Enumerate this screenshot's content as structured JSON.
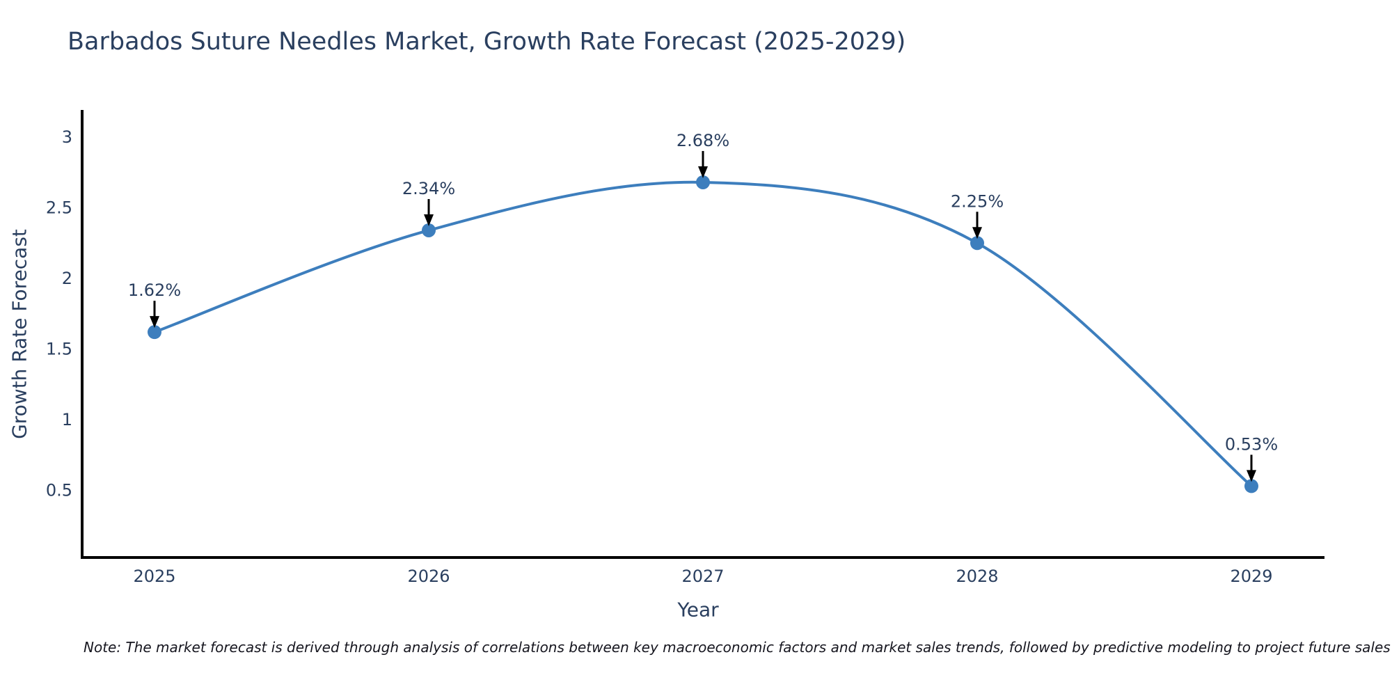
{
  "chart_data": {
    "type": "line",
    "title": "Barbados Suture Needles Market, Growth Rate Forecast (2025-2029)",
    "xlabel": "Year",
    "ylabel": "Growth Rate Forecast",
    "x": [
      2025,
      2026,
      2027,
      2028,
      2029
    ],
    "series": [
      {
        "name": "Growth Rate Forecast",
        "values": [
          1.62,
          2.34,
          2.68,
          2.25,
          0.53
        ]
      }
    ],
    "point_labels": [
      "1.62%",
      "2.34%",
      "2.68%",
      "2.25%",
      "0.53%"
    ],
    "xticks": [
      "2025",
      "2026",
      "2027",
      "2028",
      "2029"
    ],
    "yticks": [
      0.5,
      1,
      1.5,
      2,
      2.5,
      3
    ],
    "ylim": [
      0,
      3.2
    ],
    "grid": false,
    "legend": "none",
    "line_shape": "spline",
    "colors": {
      "line": "#3d7ebd",
      "marker": "#3d7ebd",
      "arrow": "#000000",
      "axis_line": "#000000",
      "text": "#2a3f5f",
      "note_text": "#16161f",
      "background": "#ffffff"
    }
  },
  "note": "Note: The market forecast is derived through analysis of correlations between key macroeconomic factors and market sales trends, followed by predictive modeling to project future sales"
}
